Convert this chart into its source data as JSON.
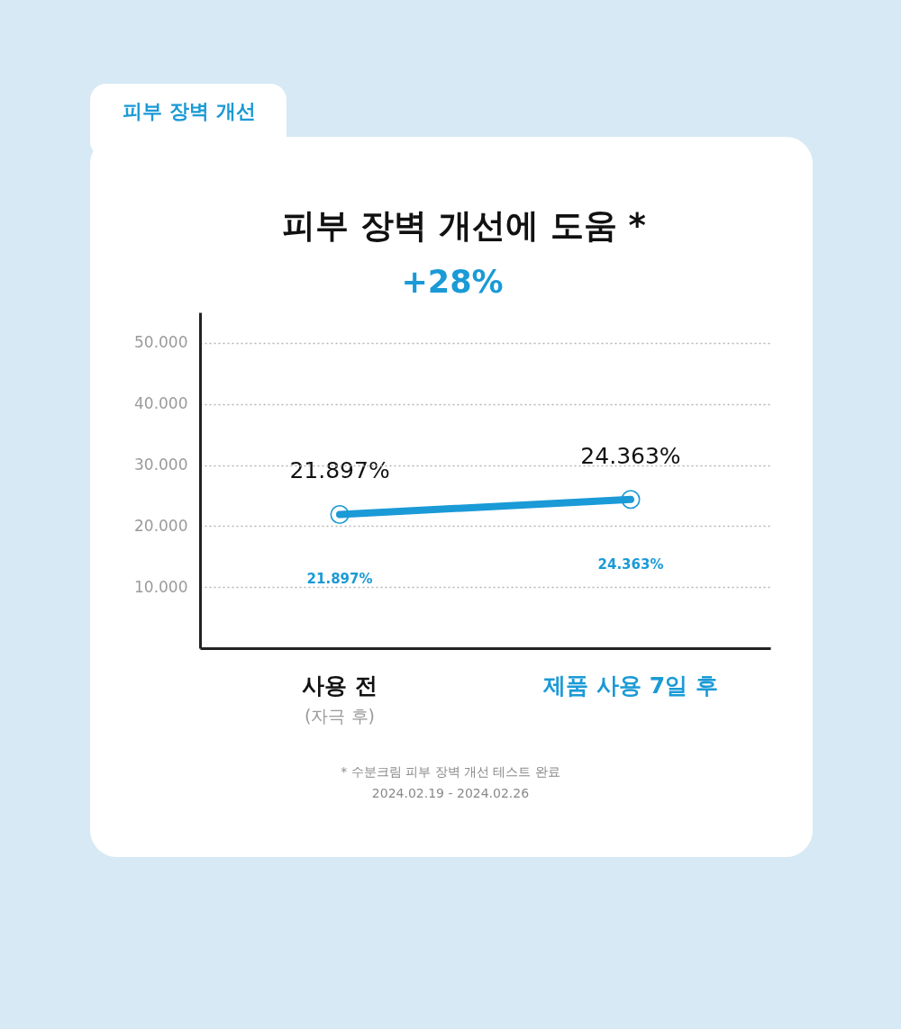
{
  "chart_data": {
    "type": "line",
    "title": "피부 장벽 개선에 도움 *",
    "subtitle": "+28%",
    "categories": [
      "사용 전",
      "제품 사용 7일 후"
    ],
    "series": [
      {
        "color": "#1a9ad6",
        "values": [
          21.897,
          24.363
        ],
        "value_labels": [
          "21.897%",
          "24.363%"
        ]
      }
    ],
    "ylim": [
      0,
      55
    ],
    "yticks": [
      {
        "value": 10,
        "label": "10.000"
      },
      {
        "value": 20,
        "label": "20.000"
      },
      {
        "value": 30,
        "label": "30.000"
      },
      {
        "value": 40,
        "label": "40.000"
      },
      {
        "value": 50,
        "label": "50.000"
      }
    ],
    "grid": "y",
    "marker": "circle",
    "line_style": "solid",
    "annotations": [
      "피부 장벽 개선",
      "(자극 후)",
      "* 수분크림 피부 장벽 개선 테스트 완료",
      "2024.02.19 - 2024.02.26"
    ]
  }
}
